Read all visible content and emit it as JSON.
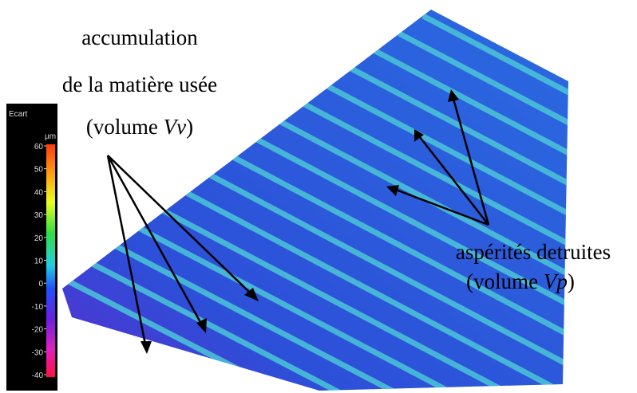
{
  "colorbar": {
    "title": "Ecart",
    "unit": "µm",
    "ticks": [
      "60",
      "50",
      "40",
      "30",
      "20",
      "10",
      "0",
      "-10",
      "-20",
      "-30",
      "-40"
    ]
  },
  "annotation_left": {
    "line1": "accumulation",
    "line2": "de la matière usée",
    "line3_prefix": "(volume ",
    "line3_symbol": "Vv",
    "line3_suffix": ")"
  },
  "annotation_right": {
    "line1": "aspérités detruites",
    "line2_prefix": "(volume ",
    "line2_symbol": "Vp",
    "line2_suffix": ")"
  }
}
